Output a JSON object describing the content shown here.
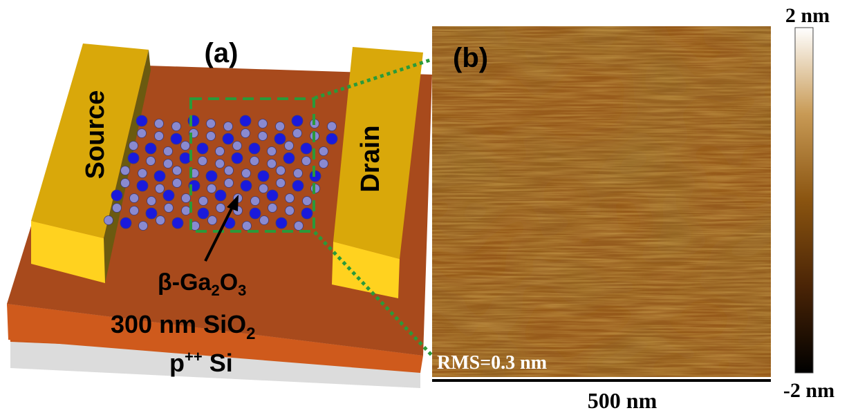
{
  "panels": {
    "a": {
      "label": "(a)",
      "source": "Source",
      "drain": "Drain",
      "channel": [
        "β-Ga",
        "2",
        "O",
        "3"
      ],
      "oxide": [
        "300 nm SiO",
        "2"
      ],
      "substrate": [
        "p",
        "++",
        " Si"
      ]
    },
    "b": {
      "label": "(b)",
      "rms": "RMS=0.3 nm",
      "scale_bar": "500 nm",
      "colorbar_max": "2 nm",
      "colorbar_min": "-2 nm"
    }
  }
}
